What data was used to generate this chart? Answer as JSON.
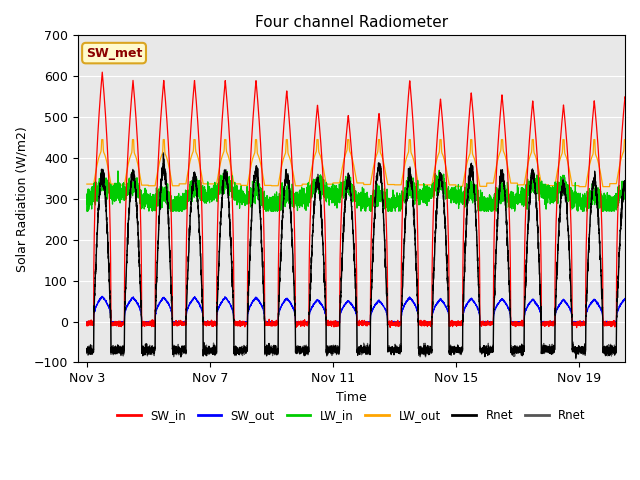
{
  "title": "Four channel Radiometer",
  "xlabel": "Time",
  "ylabel": "Solar Radiation (W/m2)",
  "ylim": [
    -100,
    700
  ],
  "yticks": [
    -100,
    0,
    100,
    200,
    300,
    400,
    500,
    600,
    700
  ],
  "n_days": 18,
  "xtick_labels": [
    "Nov 3",
    "Nov 7",
    "Nov 11",
    "Nov 15",
    "Nov 19"
  ],
  "xtick_positions": [
    0,
    4,
    8,
    12,
    16
  ],
  "annotation_text": "SW_met",
  "annotation_color": "#8B0000",
  "annotation_bg": "#FFFACD",
  "annotation_border": "#DAA520",
  "bg_color": "#E8E8E8",
  "colors": {
    "SW_in": "#FF0000",
    "SW_out": "#0000FF",
    "LW_in": "#00CC00",
    "LW_out": "#FFA500",
    "Rnet_black": "#000000",
    "Rnet_dark": "#555555"
  },
  "legend_labels": [
    "SW_in",
    "SW_out",
    "LW_in",
    "LW_out",
    "Rnet",
    "Rnet"
  ],
  "legend_colors": [
    "#FF0000",
    "#0000FF",
    "#00CC00",
    "#FFA500",
    "#000000",
    "#555555"
  ]
}
